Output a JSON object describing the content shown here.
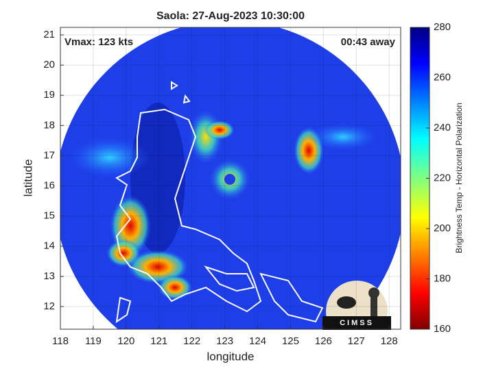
{
  "title": "Saola: 27-Aug-2023 10:30:00",
  "annotations": {
    "left": "Vmax: 123 kts",
    "right": "00:43 away"
  },
  "x_axis": {
    "label": "longitude",
    "lim": [
      118,
      128.35
    ],
    "ticks": [
      118,
      119,
      120,
      121,
      122,
      123,
      124,
      125,
      126,
      127,
      128
    ]
  },
  "y_axis": {
    "label": "latitude",
    "lim": [
      11.25,
      21.25
    ],
    "ticks": [
      12,
      13,
      14,
      15,
      16,
      17,
      18,
      19,
      20,
      21
    ]
  },
  "colorbar": {
    "label": "Brightness Temp - Horizontal Polarization",
    "lim": [
      160,
      280
    ],
    "ticks": [
      160,
      180,
      200,
      220,
      240,
      260,
      280
    ]
  },
  "logo": "CIMSS"
}
